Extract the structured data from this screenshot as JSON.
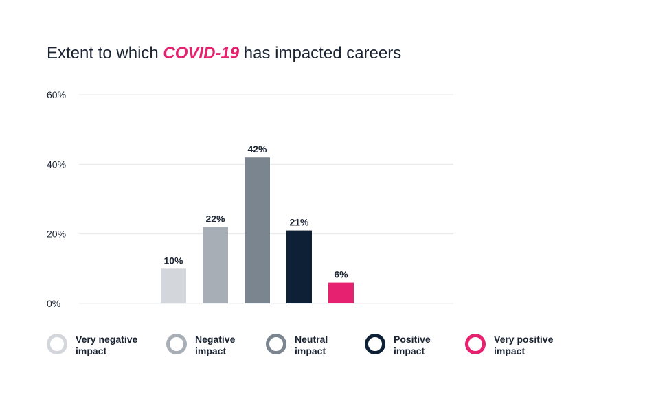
{
  "title": {
    "prefix": "Extent to which ",
    "highlight": "COVID-19",
    "suffix": " has impacted careers"
  },
  "colors": {
    "highlight": "#e6216f",
    "grid": "#e6e8ec",
    "text": "#1b2433"
  },
  "chart_data": {
    "type": "bar",
    "categories": [
      "Very negative impact",
      "Negative impact",
      "Neutral impact",
      "Positive impact",
      "Very positive impact"
    ],
    "values": [
      10,
      22,
      42,
      21,
      6
    ],
    "value_labels": [
      "10%",
      "22%",
      "42%",
      "21%",
      "6%"
    ],
    "bar_colors": [
      "#d3d6db",
      "#a7aeb6",
      "#7b8590",
      "#0d2035",
      "#e6216f"
    ],
    "ylim": [
      0,
      60
    ],
    "yticks": [
      0,
      20,
      40,
      60
    ],
    "ytick_labels": [
      "0%",
      "20%",
      "40%",
      "60%"
    ],
    "grid": true,
    "legend_position": "bottom"
  },
  "legend": [
    {
      "line1": "Very negative",
      "line2": "impact",
      "color": "#d3d6db"
    },
    {
      "line1": "Negative",
      "line2": "impact",
      "color": "#a7aeb6"
    },
    {
      "line1": "Neutral",
      "line2": "impact",
      "color": "#7b8590"
    },
    {
      "line1": "Positive",
      "line2": "impact",
      "color": "#0d2035"
    },
    {
      "line1": "Very positive",
      "line2": "impact",
      "color": "#e6216f"
    }
  ]
}
